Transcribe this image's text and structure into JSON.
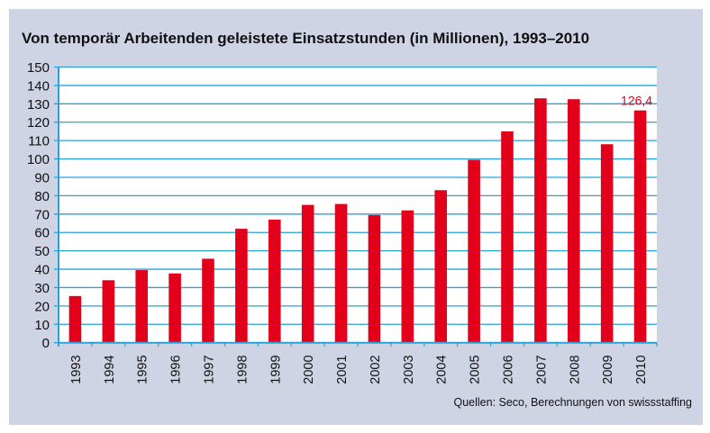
{
  "title": "Von temporär Arbeitenden geleistete Einsatzstunden (in Millionen), 1993–2010",
  "source": "Quellen: Seco, Berechnungen von swissstaffing",
  "chart_data": {
    "type": "bar",
    "title": "Von temporär Arbeitenden geleistete Einsatzstunden (in Millionen), 1993–2010",
    "categories": [
      "1993",
      "1994",
      "1995",
      "1996",
      "1997",
      "1998",
      "1999",
      "2000",
      "2001",
      "2002",
      "2003",
      "2004",
      "2005",
      "2006",
      "2007",
      "2008",
      "2009",
      "2010"
    ],
    "values": [
      25.4,
      34,
      39.5,
      37.7,
      45.7,
      62,
      67,
      75,
      75.5,
      69.5,
      72,
      83,
      99.5,
      115,
      133,
      132.5,
      108,
      126.4
    ],
    "data_labels": [
      {
        "category": "2010",
        "text": "126,4"
      }
    ],
    "ylim": [
      0,
      150
    ],
    "yticks": [
      0,
      10,
      20,
      30,
      40,
      50,
      60,
      70,
      80,
      90,
      100,
      110,
      120,
      130,
      140,
      150
    ],
    "grid": true,
    "colors": {
      "bar": "#e2001a",
      "grid": "#29a3d6",
      "label": "#e2001a",
      "panel": "#cfd4e5"
    }
  }
}
